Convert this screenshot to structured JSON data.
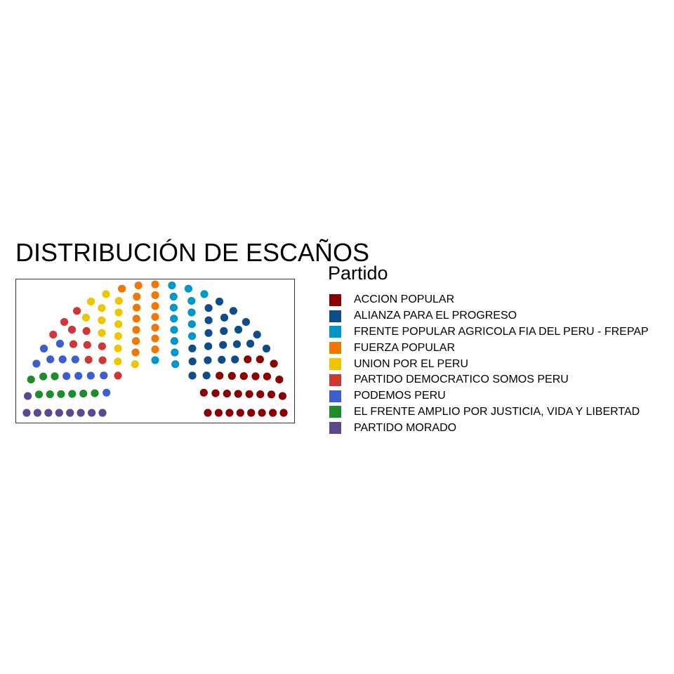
{
  "chart_data": {
    "type": "parliament",
    "title": "DISTRIBUCIÓN DE ESCAÑOS",
    "legend_title": "Partido",
    "legend_position": "right",
    "grid": false,
    "total_seats": 130,
    "rows": 8,
    "series": [
      {
        "name": "ACCION POPULAR",
        "seats": 25,
        "color": "#8B0000"
      },
      {
        "name": "ALIANZA PARA EL PROGRESO",
        "seats": 22,
        "color": "#0E4C8A"
      },
      {
        "name": "FRENTE POPULAR AGRICOLA FIA DEL PERU - FREPAP",
        "seats": 15,
        "color": "#0096C7"
      },
      {
        "name": "FUERZA POPULAR",
        "seats": 15,
        "color": "#F07800"
      },
      {
        "name": "UNION POR EL PERU",
        "seats": 13,
        "color": "#EEC600"
      },
      {
        "name": "PARTIDO DEMOCRATICO SOMOS PERU",
        "seats": 11,
        "color": "#D13636"
      },
      {
        "name": "PODEMOS PERU",
        "seats": 11,
        "color": "#3B5FCF"
      },
      {
        "name": "EL FRENTE AMPLIO POR JUSTICIA, VIDA Y LIBERTAD",
        "seats": 9,
        "color": "#1E8C2A"
      },
      {
        "name": "PARTIDO MORADO",
        "seats": 9,
        "color": "#5B4A8B"
      }
    ]
  }
}
